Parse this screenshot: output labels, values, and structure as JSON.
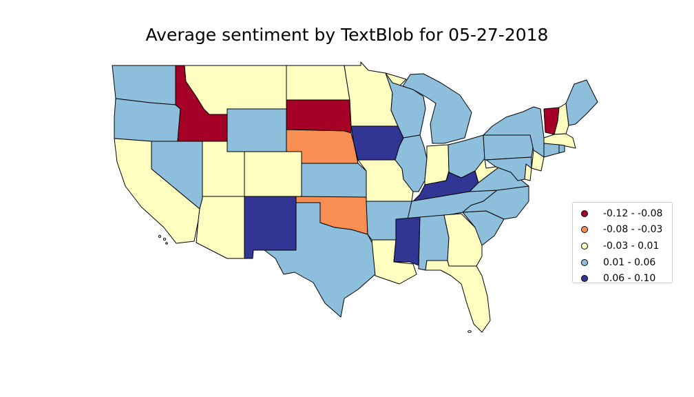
{
  "title": "Average sentiment by TextBlob for 05-27-2018",
  "legend": [
    {
      "label": "-0.12 - -0.08",
      "color": "#a50026"
    },
    {
      "label": "-0.08 - -0.03",
      "color": "#f98e52"
    },
    {
      "label": "-0.03 - 0.01",
      "color": "#fefec0"
    },
    {
      "label": "0.01 - 0.06",
      "color": "#8dbedc"
    },
    {
      "label": "0.06 - 0.10",
      "color": "#313695"
    }
  ],
  "states": [
    {
      "id": "WA",
      "class": 3
    },
    {
      "id": "OR",
      "class": 3
    },
    {
      "id": "CA",
      "class": 2
    },
    {
      "id": "ID",
      "class": 0
    },
    {
      "id": "NV",
      "class": 3
    },
    {
      "id": "MT",
      "class": 2
    },
    {
      "id": "WY",
      "class": 3
    },
    {
      "id": "UT",
      "class": 2
    },
    {
      "id": "AZ",
      "class": 2
    },
    {
      "id": "CO",
      "class": 2
    },
    {
      "id": "NM",
      "class": 4
    },
    {
      "id": "ND",
      "class": 2
    },
    {
      "id": "SD",
      "class": 0
    },
    {
      "id": "NE",
      "class": 1
    },
    {
      "id": "KS",
      "class": 3
    },
    {
      "id": "OK",
      "class": 1
    },
    {
      "id": "TX",
      "class": 3
    },
    {
      "id": "MN",
      "class": 2
    },
    {
      "id": "IA",
      "class": 4
    },
    {
      "id": "MO",
      "class": 2
    },
    {
      "id": "AR",
      "class": 3
    },
    {
      "id": "LA",
      "class": 2
    },
    {
      "id": "WI",
      "class": 3
    },
    {
      "id": "IL",
      "class": 3
    },
    {
      "id": "MI",
      "class": 3
    },
    {
      "id": "IN",
      "class": 2
    },
    {
      "id": "OH",
      "class": 3
    },
    {
      "id": "KY",
      "class": 4
    },
    {
      "id": "TN",
      "class": 3
    },
    {
      "id": "MS",
      "class": 4
    },
    {
      "id": "AL",
      "class": 3
    },
    {
      "id": "GA",
      "class": 2
    },
    {
      "id": "FL",
      "class": 2
    },
    {
      "id": "SC",
      "class": 3
    },
    {
      "id": "NC",
      "class": 3
    },
    {
      "id": "VA",
      "class": 3
    },
    {
      "id": "WV",
      "class": 2
    },
    {
      "id": "PA",
      "class": 3
    },
    {
      "id": "NY",
      "class": 3
    },
    {
      "id": "NJ",
      "class": 2
    },
    {
      "id": "DE",
      "class": 2
    },
    {
      "id": "MD",
      "class": 3
    },
    {
      "id": "VT",
      "class": 0
    },
    {
      "id": "NH",
      "class": 2
    },
    {
      "id": "ME",
      "class": 3
    },
    {
      "id": "MA",
      "class": 2
    },
    {
      "id": "CT",
      "class": 3
    },
    {
      "id": "RI",
      "class": 3
    }
  ]
}
